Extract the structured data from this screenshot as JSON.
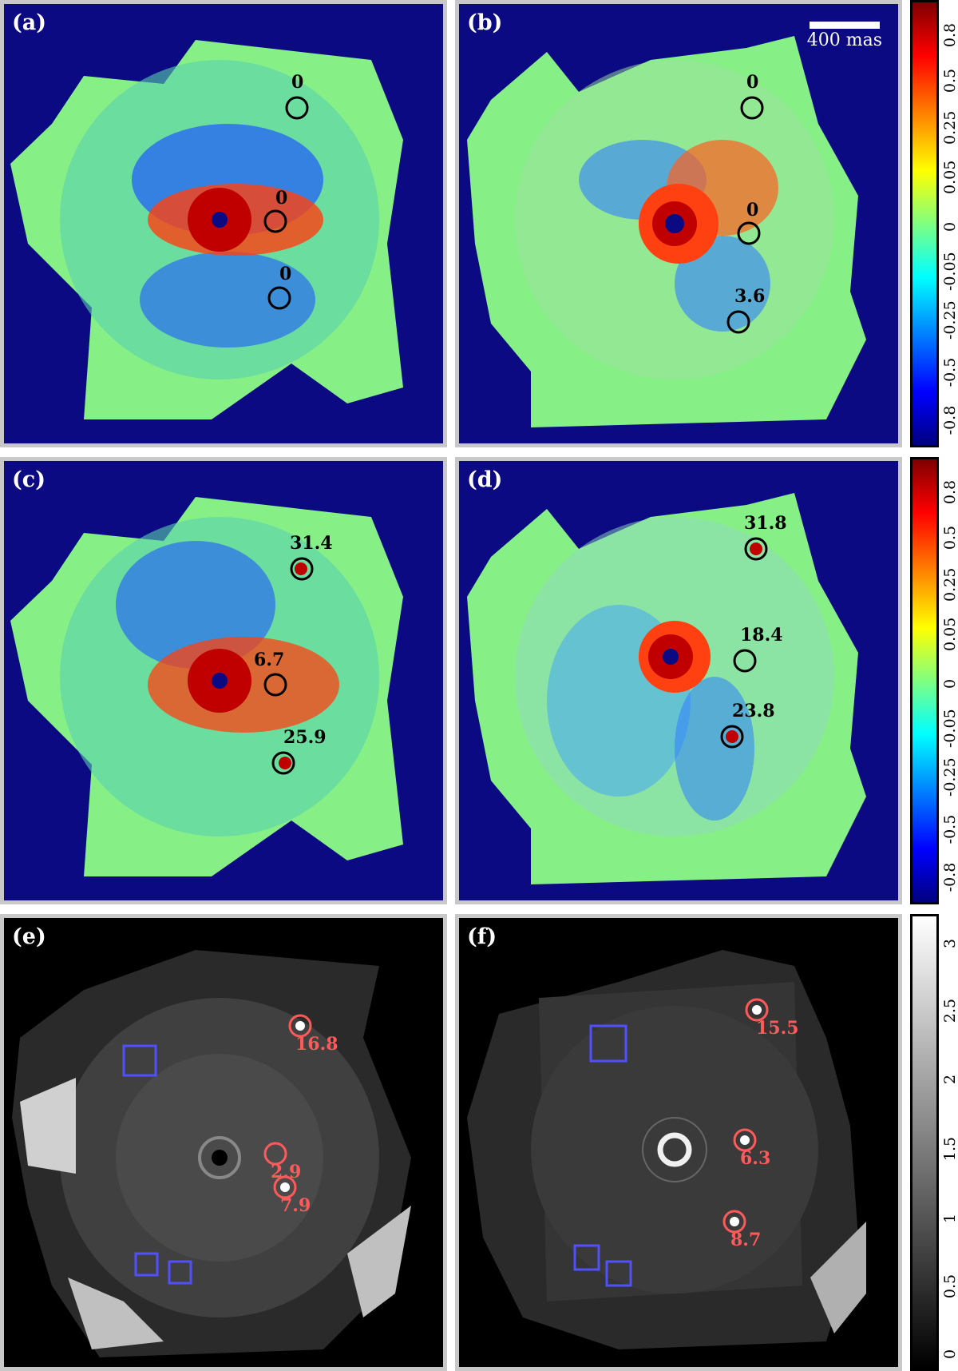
{
  "panels": {
    "a": {
      "label": "(a)",
      "markers": [
        "0",
        "0",
        "0"
      ]
    },
    "b": {
      "label": "(b)",
      "markers": [
        "0",
        "0",
        "3.6"
      ]
    },
    "c": {
      "label": "(c)",
      "markers": [
        "31.4",
        "6.7",
        "25.9"
      ]
    },
    "d": {
      "label": "(d)",
      "markers": [
        "31.8",
        "18.4",
        "23.8"
      ]
    },
    "e": {
      "label": "(e)",
      "markers": [
        "16.8",
        "2.9",
        "7.9"
      ]
    },
    "f": {
      "label": "(f)",
      "markers": [
        "15.5",
        "6.3",
        "8.7"
      ]
    }
  },
  "scalebar": {
    "text": "400 mas"
  },
  "colorbar_top": {
    "ticks": [
      "0.8",
      "0.5",
      "0.25",
      "0.05",
      "0",
      "-0.05",
      "-0.25",
      "-0.5",
      "-0.8"
    ]
  },
  "colorbar_mid": {
    "ticks": [
      "0.8",
      "0.5",
      "0.25",
      "0.05",
      "0",
      "-0.05",
      "-0.25",
      "-0.5",
      "-0.8"
    ]
  },
  "colorbar_bottom": {
    "ticks": [
      "3",
      "2.5",
      "2",
      "1.5",
      "1",
      "0.5",
      "0"
    ]
  },
  "colors": {
    "marker_black": "#000000",
    "marker_red": "#ff5a5a",
    "box_blue": "#5050ff",
    "frame": "#c8c8c8"
  }
}
